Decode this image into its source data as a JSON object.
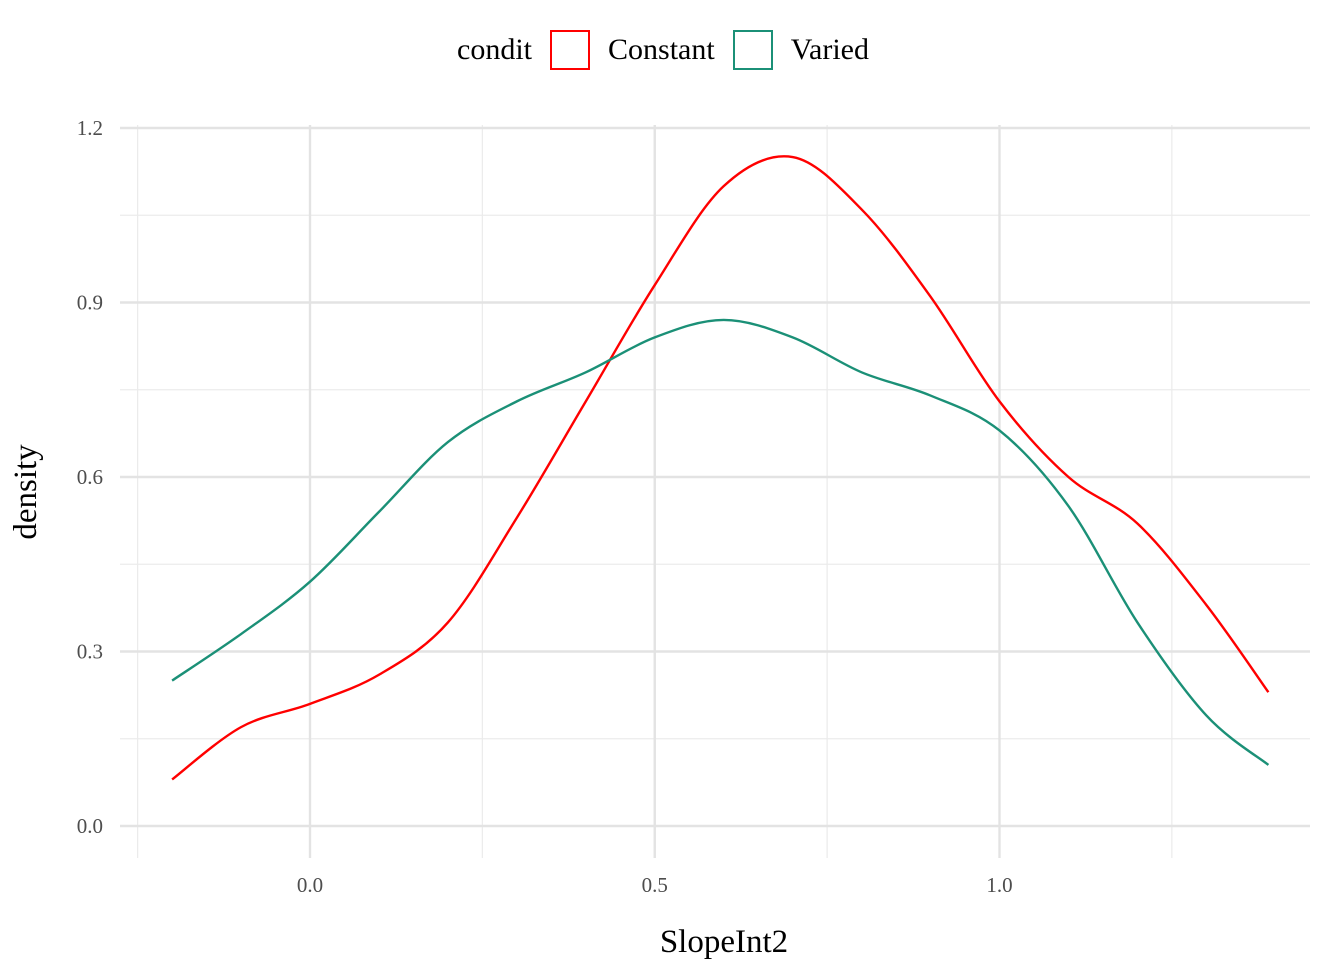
{
  "legend": {
    "title": "condit",
    "items": [
      {
        "label": "Constant",
        "color": "#ff0000"
      },
      {
        "label": "Varied",
        "color": "#1b9077"
      }
    ]
  },
  "chart_data": {
    "type": "line",
    "title": "",
    "xlabel": "SlopeInt2",
    "ylabel": "density",
    "xlim": [
      -0.25,
      1.45
    ],
    "ylim": [
      -0.05,
      1.2
    ],
    "x_ticks": [
      0.0,
      0.5,
      1.0
    ],
    "x_tick_labels": [
      "0.0",
      "0.5",
      "1.0"
    ],
    "y_ticks": [
      0.0,
      0.3,
      0.6,
      0.9,
      1.2
    ],
    "y_tick_labels": [
      "0.0",
      "0.3",
      "0.6",
      "0.9",
      "1.2"
    ],
    "grid": true,
    "legend_position": "top",
    "series": [
      {
        "name": "Constant",
        "color": "#ff0000",
        "x": [
          -0.2,
          -0.1,
          0.0,
          0.1,
          0.2,
          0.3,
          0.4,
          0.5,
          0.6,
          0.7,
          0.8,
          0.9,
          1.0,
          1.1,
          1.2,
          1.3,
          1.39
        ],
        "y": [
          0.08,
          0.17,
          0.21,
          0.26,
          0.35,
          0.53,
          0.73,
          0.93,
          1.1,
          1.15,
          1.06,
          0.91,
          0.73,
          0.6,
          0.52,
          0.38,
          0.23
        ]
      },
      {
        "name": "Varied",
        "color": "#1b9077",
        "x": [
          -0.2,
          -0.1,
          0.0,
          0.1,
          0.2,
          0.3,
          0.4,
          0.5,
          0.6,
          0.7,
          0.8,
          0.9,
          1.0,
          1.1,
          1.2,
          1.3,
          1.39
        ],
        "y": [
          0.25,
          0.33,
          0.42,
          0.54,
          0.66,
          0.73,
          0.78,
          0.84,
          0.87,
          0.84,
          0.78,
          0.74,
          0.68,
          0.55,
          0.35,
          0.19,
          0.105
        ]
      }
    ]
  }
}
